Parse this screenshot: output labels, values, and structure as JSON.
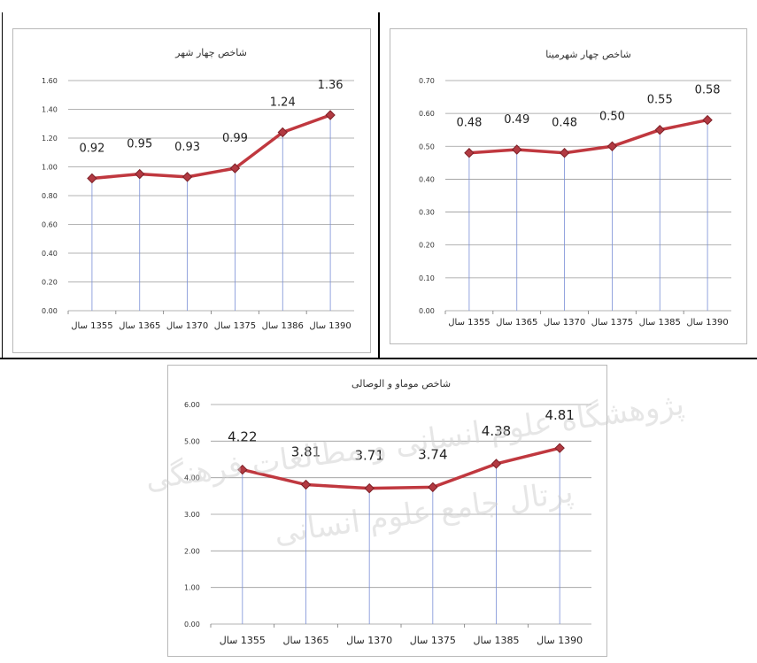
{
  "chart_data": [
    {
      "type": "line",
      "title": "شاخص چهار شهر",
      "categories": [
        "1355 سال",
        "1365 سال",
        "1370 سال",
        "1375 سال",
        "1386 سال",
        "1390 سال"
      ],
      "values": [
        0.92,
        0.95,
        0.93,
        0.99,
        1.24,
        1.36
      ],
      "data_labels": [
        "0.92",
        "0.95",
        "0.93",
        "0.99",
        "1.24",
        "1.36"
      ],
      "ylim": [
        0,
        1.6
      ],
      "yticks": [
        "0.00",
        "0.20",
        "0.40",
        "0.60",
        "0.80",
        "1.00",
        "1.20",
        "1.40",
        "1.60"
      ],
      "grid": true,
      "legend": "none"
    },
    {
      "type": "line",
      "title": "شاخص چهار شهرمینا",
      "categories": [
        "1355 سال",
        "1365 سال",
        "1370 سال",
        "1375 سال",
        "1385 سال",
        "1390 سال"
      ],
      "values": [
        0.48,
        0.49,
        0.48,
        0.5,
        0.55,
        0.58
      ],
      "data_labels": [
        "0.48",
        "0.49",
        "0.48",
        "0.50",
        "0.55",
        "0.58"
      ],
      "ylim": [
        0,
        0.7
      ],
      "yticks": [
        "0.00",
        "0.10",
        "0.20",
        "0.30",
        "0.40",
        "0.50",
        "0.60",
        "0.70"
      ],
      "grid": true,
      "legend": "none"
    },
    {
      "type": "line",
      "title": "شاخص موماو و الوصالی",
      "categories": [
        "1355 سال",
        "1365 سال",
        "1370 سال",
        "1375 سال",
        "1385 سال",
        "1390 سال"
      ],
      "values": [
        4.22,
        3.81,
        3.71,
        3.74,
        4.38,
        4.81
      ],
      "data_labels": [
        "4.22",
        "3.81",
        "3.71",
        "3.74",
        "4.38",
        "4.81"
      ],
      "ylim": [
        0,
        6
      ],
      "yticks": [
        "0.00",
        "1.00",
        "2.00",
        "3.00",
        "4.00",
        "5.00",
        "6.00"
      ],
      "grid": true,
      "legend": "none"
    }
  ],
  "colors": {
    "line": "#c0383f",
    "marker": "#b23a42",
    "grid": "#9a9a9a",
    "drop_line": "#7a8fd6",
    "watermark": "#c8c8c8"
  },
  "watermark": {
    "line1": "پژوهشگاه علوم انسانی و مطالعات فرهنگی",
    "line2": "پرتال جامع علوم انسانی"
  }
}
